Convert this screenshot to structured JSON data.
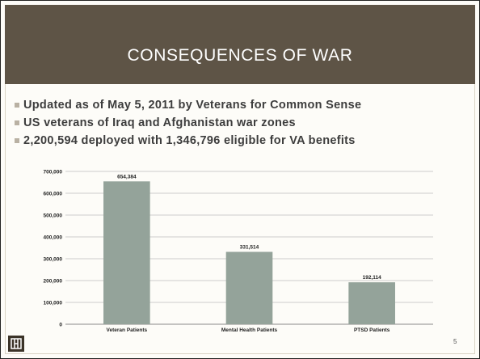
{
  "slide": {
    "title": "CONSEQUENCES OF WAR",
    "bullets": [
      "Updated as of May 5, 2011 by Veterans for Common Sense",
      "US veterans of Iraq and Afghanistan war zones",
      "2,200,594 deployed with 1,346,796 eligible for VA benefits"
    ],
    "page_number": "5",
    "logo_icon": "building-logo-icon"
  },
  "colors": {
    "title_bar": "#5e5446",
    "bar": "#94a39a",
    "bullet_mark": "#b9b1a3"
  },
  "chart_data": {
    "type": "bar",
    "title": "",
    "xlabel": "",
    "ylabel": "",
    "categories": [
      "Veteran Patients",
      "Mental Health Patients",
      "PTSD Patients"
    ],
    "values": [
      654384,
      331514,
      192114
    ],
    "value_labels": [
      "654,384",
      "331,514",
      "192,114"
    ],
    "ylim": [
      0,
      700000
    ],
    "yticks": [
      0,
      100000,
      200000,
      300000,
      400000,
      500000,
      600000,
      700000
    ],
    "ytick_labels": [
      "0",
      "100,000",
      "200,000",
      "300,000",
      "400,000",
      "500,000",
      "600,000",
      "700,000"
    ],
    "grid": true,
    "legend": "none"
  }
}
